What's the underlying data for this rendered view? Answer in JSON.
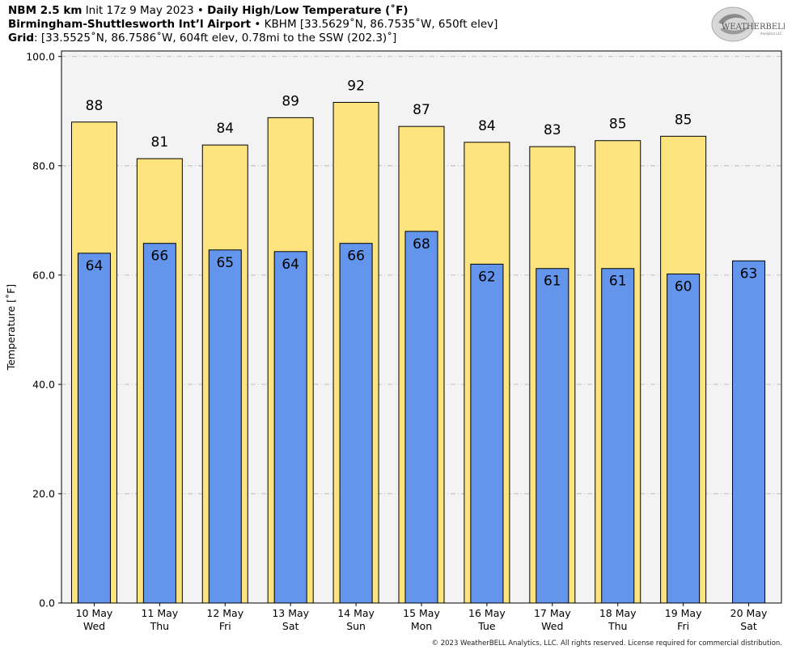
{
  "header": {
    "line1": {
      "model": "NBM 2.5 km",
      "init": "Init 17z 9 May 2023",
      "sep": "•",
      "product": "Daily High/Low Temperature (˚F)"
    },
    "line2": {
      "station": "Birmingham-Shuttlesworth Int’l Airport",
      "sep": "•",
      "details": "KBHM [33.5629˚N, 86.7535˚W, 650ft elev]"
    },
    "line3": {
      "label": "Grid",
      "details": ": [33.5525˚N, 86.7586˚W, 604ft elev, 0.78mi to the SSW (202.3)˚]"
    }
  },
  "logo": {
    "text_main": "WEATHERBELL",
    "text_sub": "Analytics LLC",
    "icon": "swirl-logo-icon"
  },
  "copyright": "© 2023 WeatherBELL Analytics, LLC. All rights reserved. License required for commercial distribution.",
  "colors": {
    "high": "#fde47f",
    "low": "#6495ed",
    "plot_bg": "#f3f3f3",
    "grid": "#b0b0b0"
  },
  "chart_data": {
    "type": "bar",
    "title": "Daily High/Low Temperature (˚F)",
    "ylabel": "Temperature [˚F]",
    "xlabel": "",
    "ylim": [
      0,
      100
    ],
    "yticks": [
      "0.0",
      "20.0",
      "40.0",
      "60.0",
      "80.0",
      "100.0"
    ],
    "grid": "horizontal dash-dot",
    "categories": [
      [
        "10 May",
        "Wed"
      ],
      [
        "11 May",
        "Thu"
      ],
      [
        "12 May",
        "Fri"
      ],
      [
        "13 May",
        "Sat"
      ],
      [
        "14 May",
        "Sun"
      ],
      [
        "15 May",
        "Mon"
      ],
      [
        "16 May",
        "Tue"
      ],
      [
        "17 May",
        "Wed"
      ],
      [
        "18 May",
        "Thu"
      ],
      [
        "19 May",
        "Fri"
      ],
      [
        "20 May",
        "Sat"
      ]
    ],
    "series": [
      {
        "name": "High",
        "values": [
          88,
          81.3,
          83.8,
          88.8,
          91.6,
          87.2,
          84.3,
          83.5,
          84.6,
          85.4,
          null
        ],
        "labels": [
          "88",
          "81",
          "84",
          "89",
          "92",
          "87",
          "84",
          "83",
          "85",
          "85",
          ""
        ]
      },
      {
        "name": "Low",
        "values": [
          64,
          65.8,
          64.6,
          64.3,
          65.8,
          68,
          62,
          61.2,
          61.2,
          60.2,
          62.6
        ],
        "labels": [
          "64",
          "66",
          "65",
          "64",
          "66",
          "68",
          "62",
          "61",
          "61",
          "60",
          "63"
        ]
      }
    ]
  }
}
